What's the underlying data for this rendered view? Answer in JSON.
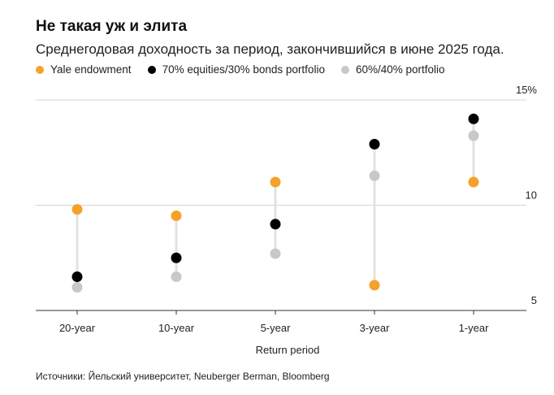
{
  "chart_data": {
    "type": "scatter",
    "title": "Не такая уж и элита",
    "subtitle": "Среднегодовая доходность за период, закончившийся в июне 2025 года.",
    "xlabel": "Return period",
    "ylabel": "",
    "categories": [
      "20-year",
      "10-year",
      "5-year",
      "3-year",
      "1-year"
    ],
    "ylim": [
      5,
      15
    ],
    "yticks": [
      {
        "value": 15,
        "label": "15%"
      },
      {
        "value": 10,
        "label": "10"
      },
      {
        "value": 5,
        "label": "5"
      }
    ],
    "grid": true,
    "legend_position": "top-left",
    "series": [
      {
        "name": "Yale endowment",
        "color": "#f5a12a",
        "values": [
          9.8,
          9.5,
          11.1,
          6.2,
          11.1
        ]
      },
      {
        "name": "70% equities/30% bonds portfolio",
        "color": "#000000",
        "values": [
          6.6,
          7.5,
          9.1,
          12.9,
          14.1
        ]
      },
      {
        "name": "60%/40% portfolio",
        "color": "#c8c8c8",
        "values": [
          6.1,
          6.6,
          7.7,
          11.4,
          13.3
        ]
      }
    ],
    "connector_color": "#e2e2e2",
    "source": "Источники: Йельский университет, Neuberger Berman, Bloomberg"
  }
}
